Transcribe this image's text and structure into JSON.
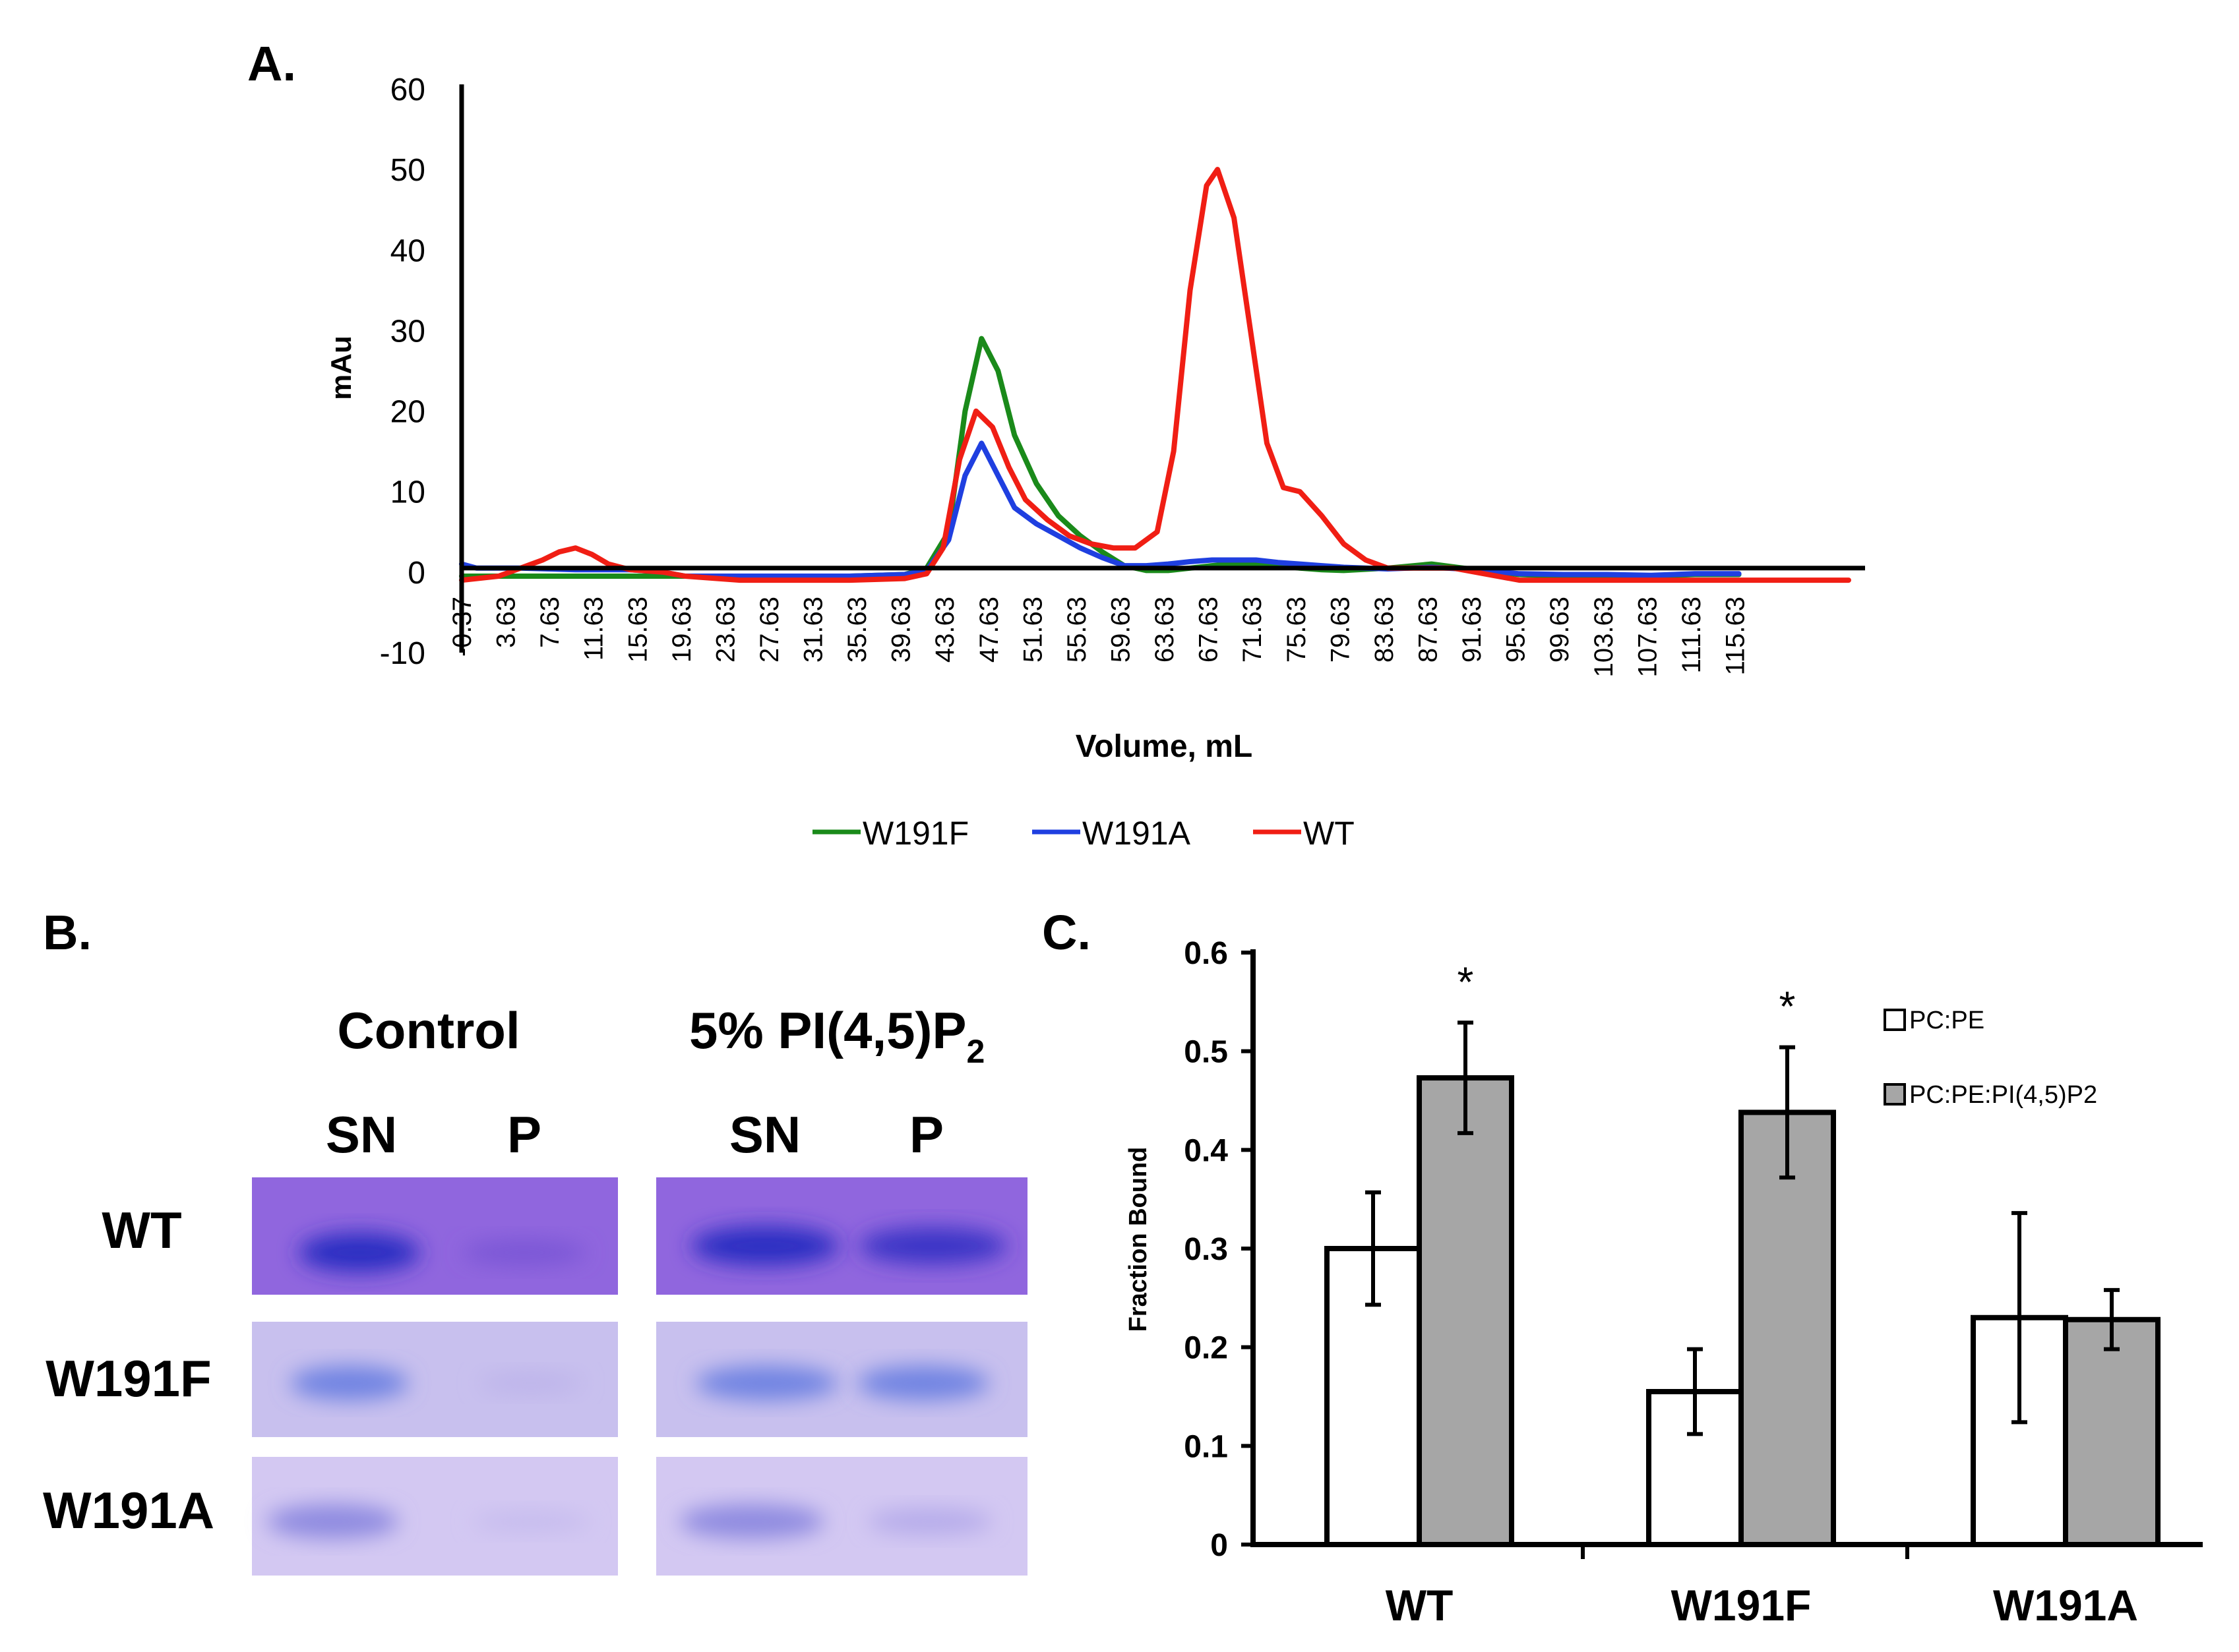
{
  "figure_labels": {
    "a": "A.",
    "b": "B.",
    "c": "C."
  },
  "chart_data": [
    {
      "panel": "A",
      "type": "line",
      "ylabel": "mAu",
      "xlabel": "Volume, mL",
      "ylim": [
        -10,
        60
      ],
      "yticks": [
        -10,
        0,
        10,
        20,
        30,
        40,
        50,
        60
      ],
      "xlim": [
        -0.37,
        127.5
      ],
      "xticks": [
        -0.37,
        3.63,
        7.63,
        11.63,
        15.63,
        19.63,
        23.63,
        27.63,
        31.63,
        35.63,
        39.63,
        43.63,
        47.63,
        51.63,
        55.63,
        59.63,
        63.63,
        67.63,
        71.63,
        75.63,
        79.63,
        83.63,
        87.63,
        91.63,
        95.63,
        99.63,
        103.63,
        107.63,
        111.63,
        115.63
      ],
      "xtick_labels": [
        "-0.37",
        "3.63",
        "7.63",
        "11.63",
        "15.63",
        "19.63",
        "23.63",
        "27.63",
        "31.63",
        "35.63",
        "39.63",
        "43.63",
        "47.63",
        "51.63",
        "55.63",
        "59.63",
        "63.63",
        "67.63",
        "71.63",
        "75.63",
        "79.63",
        "83.63",
        "87.63",
        "91.63",
        "95.63",
        "99.63",
        "103.63",
        "107.63",
        "111.63",
        "115.63"
      ],
      "baseline_y": 0.5,
      "legend": [
        "W191F",
        "W191A",
        "WT"
      ],
      "series": [
        {
          "name": "W191F",
          "color": "#1a8a1a",
          "x": [
            -0.37,
            5,
            10,
            15,
            20,
            25,
            30,
            35,
            40,
            42,
            44,
            45.5,
            47,
            48.5,
            50,
            52,
            54,
            56,
            58,
            60,
            62,
            64,
            66,
            68,
            70,
            72,
            74,
            76,
            78,
            80,
            84,
            88,
            92,
            96,
            100,
            104,
            108,
            112,
            116
          ],
          "y": [
            -0.5,
            -0.5,
            -0.5,
            -0.5,
            -0.5,
            -0.5,
            -0.5,
            -0.5,
            -0.3,
            0.5,
            5,
            20,
            29,
            25,
            17,
            11,
            7,
            4.5,
            2.5,
            0.8,
            0.2,
            0.2,
            0.5,
            0.8,
            1.0,
            1.0,
            0.8,
            0.5,
            0.3,
            0.2,
            0.5,
            1.0,
            0.3,
            -0.3,
            -0.5,
            -0.5,
            -0.5,
            -0.3,
            -0.3
          ]
        },
        {
          "name": "W191A",
          "color": "#1f3fe0",
          "x": [
            -0.37,
            1,
            5,
            10,
            15,
            18,
            20,
            25,
            30,
            35,
            40,
            42,
            44,
            45.5,
            47,
            48.5,
            50,
            52,
            54,
            56,
            58,
            60,
            62,
            64,
            66,
            68,
            70,
            72,
            74,
            76,
            78,
            80,
            82,
            84,
            88,
            92,
            96,
            100,
            104,
            108,
            112,
            116
          ],
          "y": [
            1.0,
            0.5,
            0.5,
            0.3,
            0.3,
            0.0,
            -0.5,
            -0.5,
            -0.5,
            -0.5,
            -0.3,
            0.2,
            4,
            12,
            16,
            12,
            8,
            6,
            4.5,
            3.0,
            1.8,
            0.8,
            0.8,
            1.0,
            1.3,
            1.5,
            1.5,
            1.5,
            1.2,
            1.0,
            0.8,
            0.6,
            0.5,
            0.4,
            0.6,
            0.3,
            -0.2,
            -0.3,
            -0.3,
            -0.4,
            -0.2,
            -0.2
          ]
        },
        {
          "name": "WT",
          "color": "#f01e14",
          "x": [
            -0.37,
            3,
            5,
            7,
            8.5,
            10,
            11.5,
            13,
            15,
            18,
            20,
            25,
            30,
            35,
            40,
            42,
            43.5,
            45,
            46.5,
            48,
            49.5,
            51,
            53,
            55,
            57,
            59,
            61,
            63,
            64.5,
            66,
            67.5,
            68.5,
            70,
            71.5,
            73,
            74.5,
            76,
            78,
            80,
            82,
            84,
            86,
            88,
            90,
            92,
            96,
            100,
            104,
            108,
            112,
            116,
            120,
            126
          ],
          "y": [
            -1.0,
            -0.5,
            0.5,
            1.5,
            2.5,
            3.0,
            2.2,
            1.0,
            0.3,
            0.0,
            -0.5,
            -1.0,
            -1.0,
            -1.0,
            -0.8,
            -0.2,
            3,
            14,
            20,
            18,
            13,
            9,
            6.5,
            4.5,
            3.5,
            3.0,
            3.0,
            5,
            15,
            35,
            48,
            50,
            44,
            30,
            16,
            10.5,
            10,
            7,
            3.5,
            1.5,
            0.5,
            0.5,
            0.5,
            0.5,
            0.0,
            -1.0,
            -1.0,
            -1.0,
            -1.0,
            -1.0,
            -1.0,
            -1.0,
            -1.0
          ]
        }
      ]
    },
    {
      "panel": "C",
      "type": "bar",
      "ylabel": "Fraction Bound",
      "ylim": [
        0,
        0.6
      ],
      "yticks": [
        0,
        0.1,
        0.2,
        0.3,
        0.4,
        0.5,
        0.6
      ],
      "ytick_labels": [
        "0",
        "0.1",
        "0.2",
        "0.3",
        "0.4",
        "0.5",
        "0.6"
      ],
      "categories": [
        "WT",
        "W191F",
        "W191A"
      ],
      "series": [
        {
          "name": "PC:PE",
          "color": "#ffffff",
          "values": [
            0.3,
            0.155,
            0.23
          ],
          "errors": [
            0.057,
            0.043,
            0.106
          ]
        },
        {
          "name": "PC:PE:PI(4,5)P2",
          "color": "#a6a6a6",
          "values": [
            0.473,
            0.438,
            0.228
          ],
          "errors": [
            0.056,
            0.066,
            0.03
          ]
        }
      ],
      "annotations": [
        "*",
        "*",
        ""
      ]
    }
  ],
  "gel": {
    "headers": {
      "control": "Control",
      "pip2_prefix": "5% PI(4,5)P",
      "pip2_sub": "2"
    },
    "lanes": [
      "SN",
      "P",
      "SN",
      "P"
    ],
    "rows": [
      "WT",
      "W191F",
      "W191A"
    ]
  }
}
